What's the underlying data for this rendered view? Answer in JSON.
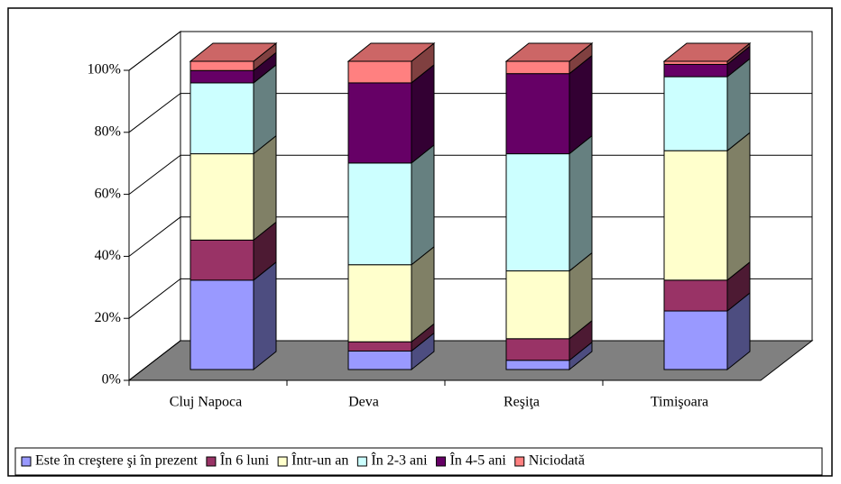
{
  "chart_data": {
    "type": "bar3d_stacked",
    "categories": [
      "Cluj Napoca",
      "Deva",
      "Reşiţa",
      "Timişoara"
    ],
    "series": [
      {
        "name": "Este în creştere şi în prezent",
        "color": "#9999ff",
        "values": [
          29,
          6,
          3,
          19
        ]
      },
      {
        "name": "În 6 luni",
        "color": "#993366",
        "values": [
          13,
          3,
          7,
          10
        ]
      },
      {
        "name": "Într-un an",
        "color": "#ffffcc",
        "values": [
          28,
          25,
          22,
          42
        ]
      },
      {
        "name": "În 2-3 ani",
        "color": "#ccffff",
        "values": [
          23,
          33,
          38,
          24
        ]
      },
      {
        "name": "În 4-5 ani",
        "color": "#660066",
        "values": [
          4,
          26,
          26,
          4
        ]
      },
      {
        "name": "Niciodată",
        "color": "#ff8080",
        "values": [
          3,
          7,
          4,
          1
        ]
      }
    ],
    "ylim": [
      0,
      100
    ],
    "yticks": [
      {
        "value": 0,
        "label": "0%"
      },
      {
        "value": 20,
        "label": "20%"
      },
      {
        "value": 40,
        "label": "40%"
      },
      {
        "value": 60,
        "label": "60%"
      },
      {
        "value": 80,
        "label": "80%"
      },
      {
        "value": 100,
        "label": "100%"
      }
    ],
    "grid": true,
    "legend": "bottom"
  }
}
